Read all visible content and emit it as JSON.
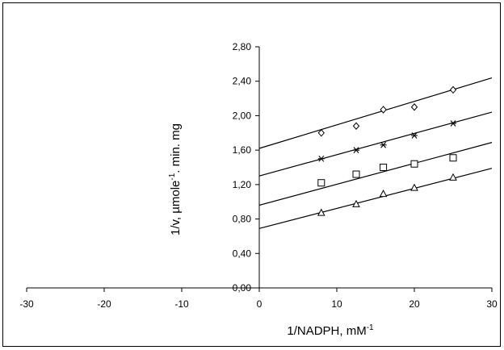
{
  "chart_data": {
    "type": "scatter",
    "title": "",
    "xlabel": "1/NADPH, mM",
    "xlabel_sup": "-1",
    "ylabel": "1/v, µmole",
    "ylabel_sup": "-1",
    "ylabel_tail": ". min. mg",
    "xlim": [
      -30,
      30
    ],
    "ylim": [
      0,
      2.8
    ],
    "x_ticks": [
      -30,
      -20,
      -10,
      0,
      10,
      20,
      30
    ],
    "x_tick_labels": [
      "-30",
      "-20",
      "-10",
      "0",
      "10",
      "20",
      "30"
    ],
    "y_ticks": [
      0,
      0.4,
      0.8,
      1.2,
      1.6,
      2.0,
      2.4,
      2.8
    ],
    "y_tick_labels": [
      "0,00",
      "0,40",
      "0,80",
      "1,20",
      "1,60",
      "2,00",
      "2,40",
      "2,80"
    ],
    "grid": false,
    "series": [
      {
        "marker": "diamond",
        "x": [
          8,
          12.5,
          16,
          20,
          25
        ],
        "y": [
          1.8,
          1.88,
          2.07,
          2.1,
          2.3
        ],
        "fit": {
          "intercept": 1.62,
          "slope": 0.0273
        }
      },
      {
        "marker": "star",
        "x": [
          8,
          12.5,
          16,
          20,
          25
        ],
        "y": [
          1.5,
          1.6,
          1.66,
          1.77,
          1.91
        ],
        "fit": {
          "intercept": 1.3,
          "slope": 0.0247
        }
      },
      {
        "marker": "square",
        "x": [
          8,
          12.5,
          16,
          20,
          25
        ],
        "y": [
          1.22,
          1.32,
          1.4,
          1.44,
          1.51
        ],
        "fit": {
          "intercept": 0.96,
          "slope": 0.0243
        }
      },
      {
        "marker": "triangle",
        "x": [
          8,
          12.5,
          16,
          20,
          25
        ],
        "y": [
          0.87,
          0.97,
          1.09,
          1.16,
          1.28
        ],
        "fit": {
          "intercept": 0.69,
          "slope": 0.0233
        }
      }
    ]
  }
}
